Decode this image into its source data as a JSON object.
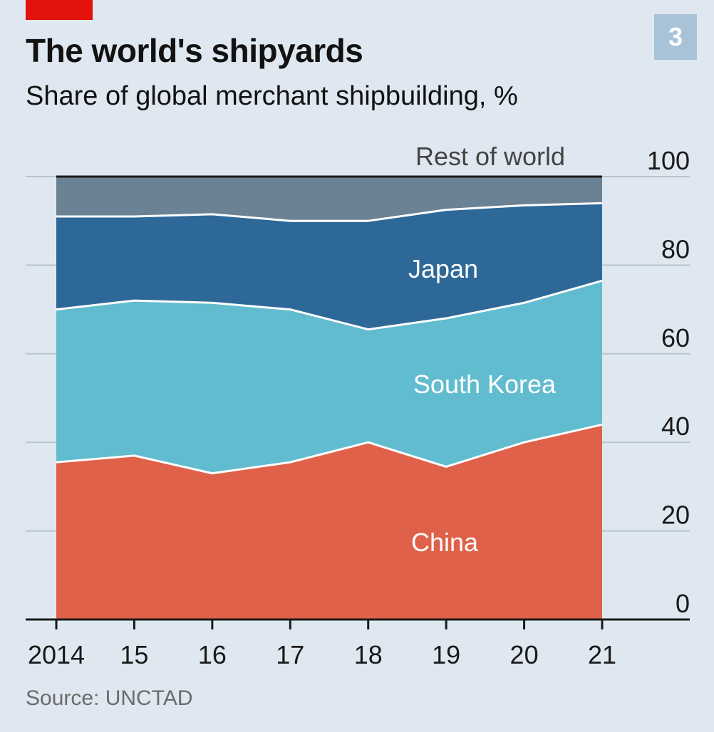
{
  "header": {
    "title": "The world's shipyards",
    "subtitle": "Share of global merchant shipbuilding, %",
    "chart_number": "3"
  },
  "footer": {
    "source": "Source: UNCTAD"
  },
  "colors": {
    "background": "#dfe8f1",
    "accent": "#e3120b",
    "china": "#e0614a",
    "south_korea": "#62bcd0",
    "japan": "#2e6898",
    "rest_of_world": "#6a8294",
    "gridline": "#b7c3cd",
    "separator": "#ffffff",
    "axis": "#1a1a1a"
  },
  "chart_data": {
    "type": "area",
    "stacked": true,
    "title": "The world's shipyards",
    "subtitle": "Share of global merchant shipbuilding, %",
    "x": [
      2014,
      2015,
      2016,
      2017,
      2018,
      2019,
      2020,
      2021
    ],
    "x_tick_labels": [
      "2014",
      "15",
      "16",
      "17",
      "18",
      "19",
      "20",
      "21"
    ],
    "ylim": [
      0,
      100
    ],
    "y_ticks": [
      0,
      20,
      40,
      60,
      80,
      100
    ],
    "y_tick_labels": [
      "0",
      "20",
      "40",
      "60",
      "80",
      "100"
    ],
    "y_axis_side": "right",
    "grid": true,
    "series": [
      {
        "name": "China",
        "color": "#e0614a",
        "label_color": "#ffffff",
        "values": [
          35.5,
          37,
          33,
          35.5,
          40,
          34.5,
          40,
          44
        ]
      },
      {
        "name": "South Korea",
        "color": "#62bcd0",
        "label_color": "#ffffff",
        "values": [
          34.5,
          35,
          38.5,
          34.5,
          25.5,
          33.5,
          31.5,
          32.5
        ]
      },
      {
        "name": "Japan",
        "color": "#2e6898",
        "label_color": "#ffffff",
        "values": [
          21,
          19,
          20,
          20,
          24.5,
          24.5,
          22,
          17.5
        ]
      },
      {
        "name": "Rest of world",
        "color": "#6a8294",
        "label_color": "#444444",
        "values": [
          9,
          9,
          8.5,
          10,
          10,
          7.5,
          6.5,
          6
        ]
      }
    ]
  }
}
